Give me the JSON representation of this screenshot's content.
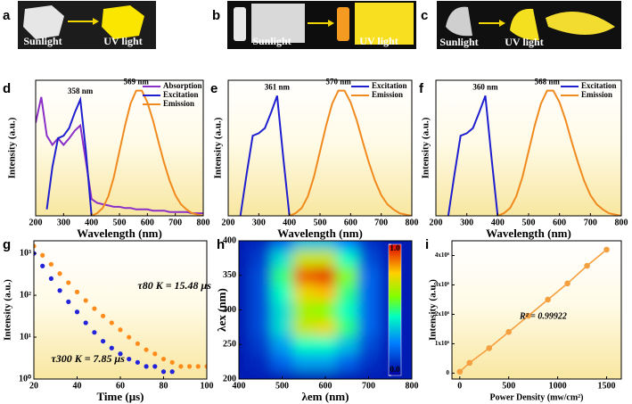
{
  "photos": [
    {
      "panel": "a",
      "captions": [
        "Sunlight",
        "UV light"
      ]
    },
    {
      "panel": "b",
      "captions": [
        "Sunlight",
        "UV light"
      ]
    },
    {
      "panel": "c",
      "captions": [
        "Sunlight",
        "UV light"
      ]
    }
  ],
  "chart_data": [
    {
      "type": "line",
      "panel": "d",
      "xlabel": "Wavelength (nm)",
      "ylabel": "Intensity (a.u.)",
      "x": [
        200,
        220,
        240,
        260,
        280,
        300,
        320,
        340,
        360,
        380,
        400,
        420,
        440,
        460,
        480,
        500,
        520,
        540,
        560,
        580,
        600,
        620,
        640,
        660,
        680,
        700,
        720,
        740,
        760,
        780,
        800
      ],
      "xlim": [
        200,
        800
      ],
      "xticks": [
        200,
        300,
        400,
        500,
        600,
        700,
        800
      ],
      "ylim": [
        0,
        1.05
      ],
      "legend": "upper right",
      "series": [
        {
          "name": "Absorption",
          "color": "#8b2fc9",
          "values": [
            0.72,
            0.92,
            0.62,
            0.55,
            0.6,
            0.55,
            0.6,
            0.66,
            0.7,
            0.42,
            0.13,
            0.1,
            0.09,
            0.08,
            0.07,
            0.07,
            0.06,
            0.06,
            0.05,
            0.05,
            0.05,
            0.04,
            0.04,
            0.04,
            0.03,
            0.03,
            0.03,
            0.03,
            0.02,
            0.02,
            0.02
          ]
        },
        {
          "name": "Excitation",
          "color": "#1f1fd0",
          "peak_label": "358 nm",
          "values": [
            null,
            null,
            0.05,
            0.38,
            0.6,
            0.62,
            0.68,
            0.8,
            0.9,
            0.5,
            0.0,
            null,
            null,
            null,
            null,
            null,
            null,
            null,
            null,
            null,
            null,
            null,
            null,
            null,
            null,
            null,
            null,
            null,
            null,
            null,
            null
          ]
        },
        {
          "name": "Emission",
          "color": "#f08a1e",
          "peak_label": "569 nm",
          "values": [
            null,
            null,
            null,
            null,
            null,
            null,
            null,
            null,
            null,
            null,
            0.0,
            0.02,
            0.06,
            0.15,
            0.3,
            0.5,
            0.7,
            0.87,
            0.97,
            0.97,
            0.88,
            0.74,
            0.57,
            0.41,
            0.27,
            0.16,
            0.09,
            0.05,
            0.02,
            0.01,
            0.0
          ]
        }
      ]
    },
    {
      "type": "line",
      "panel": "e",
      "xlabel": "Wavelength (nm)",
      "ylabel": "Intensity (a.u.)",
      "x": [
        200,
        220,
        240,
        260,
        280,
        300,
        320,
        340,
        360,
        380,
        400,
        420,
        440,
        460,
        480,
        500,
        520,
        540,
        560,
        580,
        600,
        620,
        640,
        660,
        680,
        700,
        720,
        740,
        760,
        780,
        800
      ],
      "xlim": [
        200,
        800
      ],
      "xticks": [
        200,
        300,
        400,
        500,
        600,
        700,
        800
      ],
      "ylim": [
        0,
        1.05
      ],
      "legend": "upper right",
      "series": [
        {
          "name": "Excitation",
          "color": "#1f1fd0",
          "peak_label": "361 nm",
          "values": [
            null,
            null,
            0.0,
            0.32,
            0.62,
            0.64,
            0.68,
            0.8,
            0.93,
            0.45,
            0.0,
            null,
            null,
            null,
            null,
            null,
            null,
            null,
            null,
            null,
            null,
            null,
            null,
            null,
            null,
            null,
            null,
            null,
            null,
            null,
            null
          ]
        },
        {
          "name": "Emission",
          "color": "#f08a1e",
          "peak_label": "570 nm",
          "values": [
            null,
            null,
            null,
            null,
            null,
            null,
            null,
            null,
            null,
            null,
            0.0,
            0.02,
            0.06,
            0.15,
            0.3,
            0.5,
            0.7,
            0.87,
            0.97,
            0.97,
            0.88,
            0.74,
            0.57,
            0.41,
            0.27,
            0.16,
            0.09,
            0.05,
            0.02,
            0.01,
            0.0
          ]
        }
      ]
    },
    {
      "type": "line",
      "panel": "f",
      "xlabel": "Wavelength (nm)",
      "ylabel": "Intensity (a.u.)",
      "x": [
        200,
        220,
        240,
        260,
        280,
        300,
        320,
        340,
        360,
        380,
        400,
        420,
        440,
        460,
        480,
        500,
        520,
        540,
        560,
        580,
        600,
        620,
        640,
        660,
        680,
        700,
        720,
        740,
        760,
        780,
        800
      ],
      "xlim": [
        200,
        800
      ],
      "xticks": [
        200,
        300,
        400,
        500,
        600,
        700,
        800
      ],
      "ylim": [
        0,
        1.05
      ],
      "legend": "upper right",
      "series": [
        {
          "name": "Excitation",
          "color": "#1f1fd0",
          "peak_label": "360 nm",
          "values": [
            null,
            null,
            0.0,
            0.32,
            0.62,
            0.64,
            0.68,
            0.8,
            0.93,
            0.45,
            0.0,
            null,
            null,
            null,
            null,
            null,
            null,
            null,
            null,
            null,
            null,
            null,
            null,
            null,
            null,
            null,
            null,
            null,
            null,
            null,
            null
          ]
        },
        {
          "name": "Emission",
          "color": "#f08a1e",
          "peak_label": "568 nm",
          "values": [
            null,
            null,
            null,
            null,
            null,
            null,
            null,
            null,
            null,
            null,
            0.0,
            0.02,
            0.06,
            0.15,
            0.3,
            0.5,
            0.7,
            0.87,
            0.97,
            0.97,
            0.88,
            0.74,
            0.57,
            0.41,
            0.27,
            0.16,
            0.09,
            0.05,
            0.02,
            0.01,
            0.0
          ]
        }
      ]
    },
    {
      "type": "scatter",
      "panel": "g",
      "xlabel": "Time (μs)",
      "ylabel": "Intensity (a.u.)",
      "log_y": true,
      "x": [
        20,
        24,
        28,
        32,
        36,
        40,
        44,
        48,
        52,
        56,
        60,
        64,
        68,
        72,
        76,
        80,
        84,
        88,
        92,
        96,
        100
      ],
      "xlim": [
        20,
        100
      ],
      "xticks": [
        20,
        40,
        60,
        80,
        100
      ],
      "ylim": [
        1,
        2000
      ],
      "yticks": [
        {
          "value": 1,
          "label": "10⁰"
        },
        {
          "value": 10,
          "label": "10¹"
        },
        {
          "value": 100,
          "label": "10²"
        },
        {
          "value": 1000,
          "label": "10³"
        }
      ],
      "annotations": [
        "τ80 K = 15.48 μs",
        "τ300 K = 7.85 μs"
      ],
      "series": [
        {
          "color": "#ff8c1a",
          "values": [
            1500,
            900,
            550,
            330,
            200,
            120,
            75,
            48,
            32,
            22,
            15,
            10,
            7,
            5,
            4,
            3,
            2.5,
            2,
            2,
            2,
            2
          ]
        },
        {
          "color": "#2323d9",
          "values": [
            1000,
            500,
            250,
            130,
            70,
            40,
            22,
            13,
            8,
            5.5,
            4,
            3,
            2.5,
            2,
            2,
            1.5,
            1.5,
            null,
            null,
            null,
            null
          ]
        }
      ]
    },
    {
      "type": "heatmap",
      "panel": "h",
      "xlabel": "λem (nm)",
      "ylabel": "λex (nm)",
      "x": [
        400,
        450,
        500,
        550,
        600,
        650,
        700,
        750,
        800
      ],
      "y": [
        200,
        225,
        250,
        275,
        300,
        325,
        350,
        375,
        400
      ],
      "xlim": [
        400,
        800
      ],
      "xticks": [
        400,
        500,
        600,
        700,
        800
      ],
      "ylim": [
        200,
        400
      ],
      "yticks": [
        200,
        250,
        300,
        350,
        400
      ],
      "clim": [
        0,
        1
      ],
      "cticks": [
        {
          "value": 1,
          "label": "1.0"
        },
        {
          "value": 0,
          "label": "0.0"
        }
      ],
      "z": [
        [
          0.05,
          0.05,
          0.05,
          0.05,
          0.05,
          0.05,
          0.05,
          0.05,
          0.05
        ],
        [
          0.05,
          0.08,
          0.2,
          0.3,
          0.3,
          0.2,
          0.1,
          0.05,
          0.05
        ],
        [
          0.05,
          0.12,
          0.3,
          0.45,
          0.45,
          0.35,
          0.15,
          0.06,
          0.05
        ],
        [
          0.05,
          0.15,
          0.4,
          0.7,
          0.75,
          0.5,
          0.2,
          0.07,
          0.05
        ],
        [
          0.05,
          0.15,
          0.4,
          0.65,
          0.6,
          0.45,
          0.2,
          0.07,
          0.05
        ],
        [
          0.05,
          0.15,
          0.45,
          0.75,
          0.8,
          0.5,
          0.2,
          0.07,
          0.05
        ],
        [
          0.05,
          0.15,
          0.5,
          0.9,
          0.95,
          0.6,
          0.2,
          0.07,
          0.05
        ],
        [
          0.05,
          0.12,
          0.4,
          0.7,
          0.7,
          0.45,
          0.15,
          0.06,
          0.05
        ],
        [
          0.05,
          0.08,
          0.2,
          0.35,
          0.35,
          0.25,
          0.1,
          0.05,
          0.05
        ]
      ]
    },
    {
      "type": "line",
      "panel": "i",
      "markers": true,
      "xlabel": "Power Density (mw/cm²)",
      "ylabel": "Intensity (a.u.)",
      "x": [
        0,
        100,
        300,
        500,
        700,
        900,
        1100,
        1300,
        1500
      ],
      "xlim": [
        -80,
        1650
      ],
      "xticks": [
        0,
        500,
        1000,
        1500
      ],
      "ylim": [
        -200000,
        4500000
      ],
      "yticks": [
        0,
        {
          "value": 1000000,
          "label": "1x10⁶"
        },
        {
          "value": 2000000,
          "label": "2x10⁶"
        },
        {
          "value": 3000000,
          "label": "3x10⁶"
        },
        {
          "value": 4000000,
          "label": "4x10⁶"
        }
      ],
      "annotations": [
        "R² = 0.99922"
      ],
      "series": [
        {
          "color": "#f5a040",
          "values": [
            50000,
            350000,
            850000,
            1400000,
            1950000,
            2500000,
            3050000,
            3650000,
            4200000
          ]
        }
      ]
    }
  ]
}
